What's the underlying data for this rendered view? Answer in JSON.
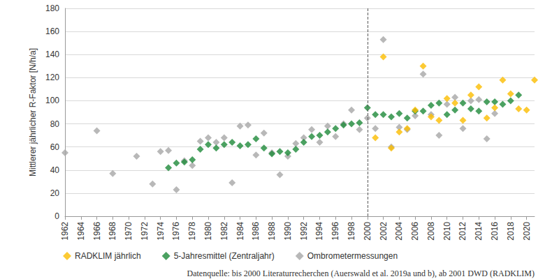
{
  "chart_data": {
    "type": "scatter",
    "y_label": "Mittlerer jährlicher R-Faktor [N/h/a]",
    "source": "Datenquelle: bis 2000 Literaturrecherchen (Auerswald et al. 2019a und b), ab 2001 DWD (RADKLIM)",
    "xlim": [
      1962,
      2021
    ],
    "xticks": [
      1962,
      1964,
      1966,
      1968,
      1970,
      1972,
      1974,
      1976,
      1978,
      1980,
      1982,
      1984,
      1986,
      1988,
      1990,
      1992,
      1994,
      1996,
      1998,
      2000,
      2002,
      2004,
      2006,
      2008,
      2010,
      2012,
      2014,
      2016,
      2018,
      2020
    ],
    "ylim": [
      0,
      180
    ],
    "yticks": [
      0,
      20,
      40,
      60,
      80,
      100,
      120,
      140,
      160,
      180
    ],
    "grid": true,
    "legend": "bottom",
    "marker": "diamond",
    "reference_line": {
      "x": 2000,
      "line_style": "dashed"
    },
    "series": [
      {
        "name": "RADKLIM jährlich",
        "color": "#fbbd00",
        "x": [
          2001,
          2002,
          2003,
          2004,
          2005,
          2006,
          2007,
          2008,
          2009,
          2010,
          2011,
          2012,
          2013,
          2014,
          2015,
          2016,
          2017,
          2018,
          2019,
          2020,
          2021
        ],
        "values": [
          68,
          138,
          59,
          73,
          76,
          92,
          130,
          86,
          83,
          102,
          98,
          83,
          105,
          112,
          85,
          94,
          118,
          106,
          93,
          92,
          118
        ]
      },
      {
        "name": "5-Jahresmittel (Zentraljahr)",
        "color": "#1e8a3a",
        "x": [
          1975,
          1976,
          1977,
          1978,
          1979,
          1980,
          1981,
          1982,
          1983,
          1984,
          1985,
          1986,
          1987,
          1988,
          1989,
          1990,
          1991,
          1992,
          1993,
          1994,
          1995,
          1996,
          1997,
          1998,
          1999,
          2000,
          2001,
          2002,
          2003,
          2004,
          2005,
          2006,
          2007,
          2008,
          2009,
          2010,
          2011,
          2012,
          2013,
          2014,
          2015,
          2016,
          2017,
          2018,
          2019
        ],
        "values": [
          42,
          46,
          47,
          49,
          58,
          62,
          59,
          62,
          64,
          61,
          62,
          67,
          59,
          54,
          56,
          55,
          58,
          64,
          69,
          70,
          73,
          76,
          79,
          80,
          81,
          94,
          88,
          88,
          86,
          89,
          85,
          91,
          91,
          96,
          98,
          88,
          92,
          98,
          93,
          91,
          99,
          99,
          97,
          100,
          105
        ]
      },
      {
        "name": "Ombrometermessungen",
        "color": "#a6a6a6",
        "x": [
          1962,
          1966,
          1968,
          1971,
          1973,
          1974,
          1975,
          1976,
          1977,
          1978,
          1979,
          1980,
          1981,
          1982,
          1983,
          1984,
          1985,
          1986,
          1987,
          1988,
          1989,
          1990,
          1991,
          1992,
          1993,
          1994,
          1995,
          1996,
          1997,
          1998,
          1999,
          2000,
          2001,
          2002,
          2003,
          2004,
          2005,
          2006,
          2007,
          2008,
          2009,
          2010,
          2011,
          2012,
          2013,
          2014,
          2015,
          2016
        ],
        "values": [
          55,
          74,
          37,
          52,
          28,
          56,
          57,
          23,
          48,
          44,
          65,
          68,
          64,
          68,
          29,
          78,
          79,
          53,
          72,
          55,
          36,
          52,
          63,
          68,
          75,
          64,
          78,
          69,
          80,
          92,
          75,
          85,
          76,
          153,
          60,
          77,
          75,
          87,
          123,
          88,
          70,
          97,
          103,
          76,
          100,
          101,
          67,
          89
        ]
      }
    ]
  }
}
